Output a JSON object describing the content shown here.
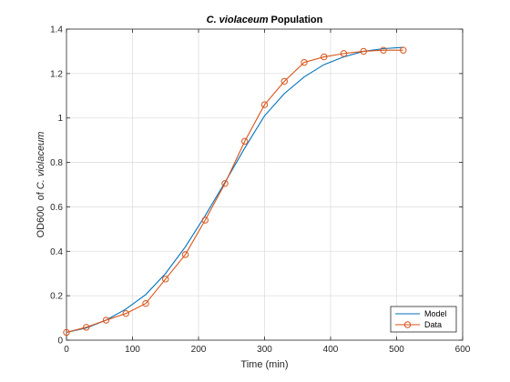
{
  "chart_data": {
    "type": "line",
    "title_italic": "C. violaceum",
    "title_rest": " Population",
    "xlabel": "Time (min)",
    "ylabel_prefix": "OD600  of ",
    "ylabel_italic": "C. violaceum",
    "xlim": [
      0,
      600
    ],
    "ylim": [
      0,
      1.4
    ],
    "x_ticks": [
      0,
      100,
      200,
      300,
      400,
      500,
      600
    ],
    "x_tick_labels": [
      "0",
      "100",
      "200",
      "300",
      "400",
      "500",
      "600"
    ],
    "y_ticks": [
      0,
      0.2,
      0.4,
      0.6,
      0.8,
      1,
      1.2,
      1.4
    ],
    "y_tick_labels": [
      "0",
      "0.2",
      "0.4",
      "0.6",
      "0.8",
      "1",
      "1.2",
      "1.4"
    ],
    "grid": true,
    "legend_position": "bottom-right",
    "series": [
      {
        "name": "Model",
        "color": "#0072BD",
        "marker": "none",
        "x": [
          0,
          30,
          60,
          90,
          120,
          150,
          180,
          210,
          240,
          270,
          300,
          330,
          360,
          390,
          420,
          450,
          480,
          510
        ],
        "y": [
          0.035,
          0.055,
          0.09,
          0.14,
          0.205,
          0.3,
          0.42,
          0.56,
          0.71,
          0.865,
          1.01,
          1.11,
          1.185,
          1.24,
          1.275,
          1.3,
          1.312,
          1.318
        ]
      },
      {
        "name": "Data",
        "color": "#D95319",
        "marker": "circle",
        "x": [
          0,
          30,
          60,
          90,
          120,
          150,
          180,
          210,
          240,
          270,
          300,
          330,
          360,
          390,
          420,
          450,
          480,
          510
        ],
        "y": [
          0.035,
          0.058,
          0.09,
          0.12,
          0.165,
          0.275,
          0.385,
          0.54,
          0.705,
          0.895,
          1.06,
          1.165,
          1.25,
          1.275,
          1.29,
          1.3,
          1.305,
          1.305
        ]
      }
    ]
  }
}
